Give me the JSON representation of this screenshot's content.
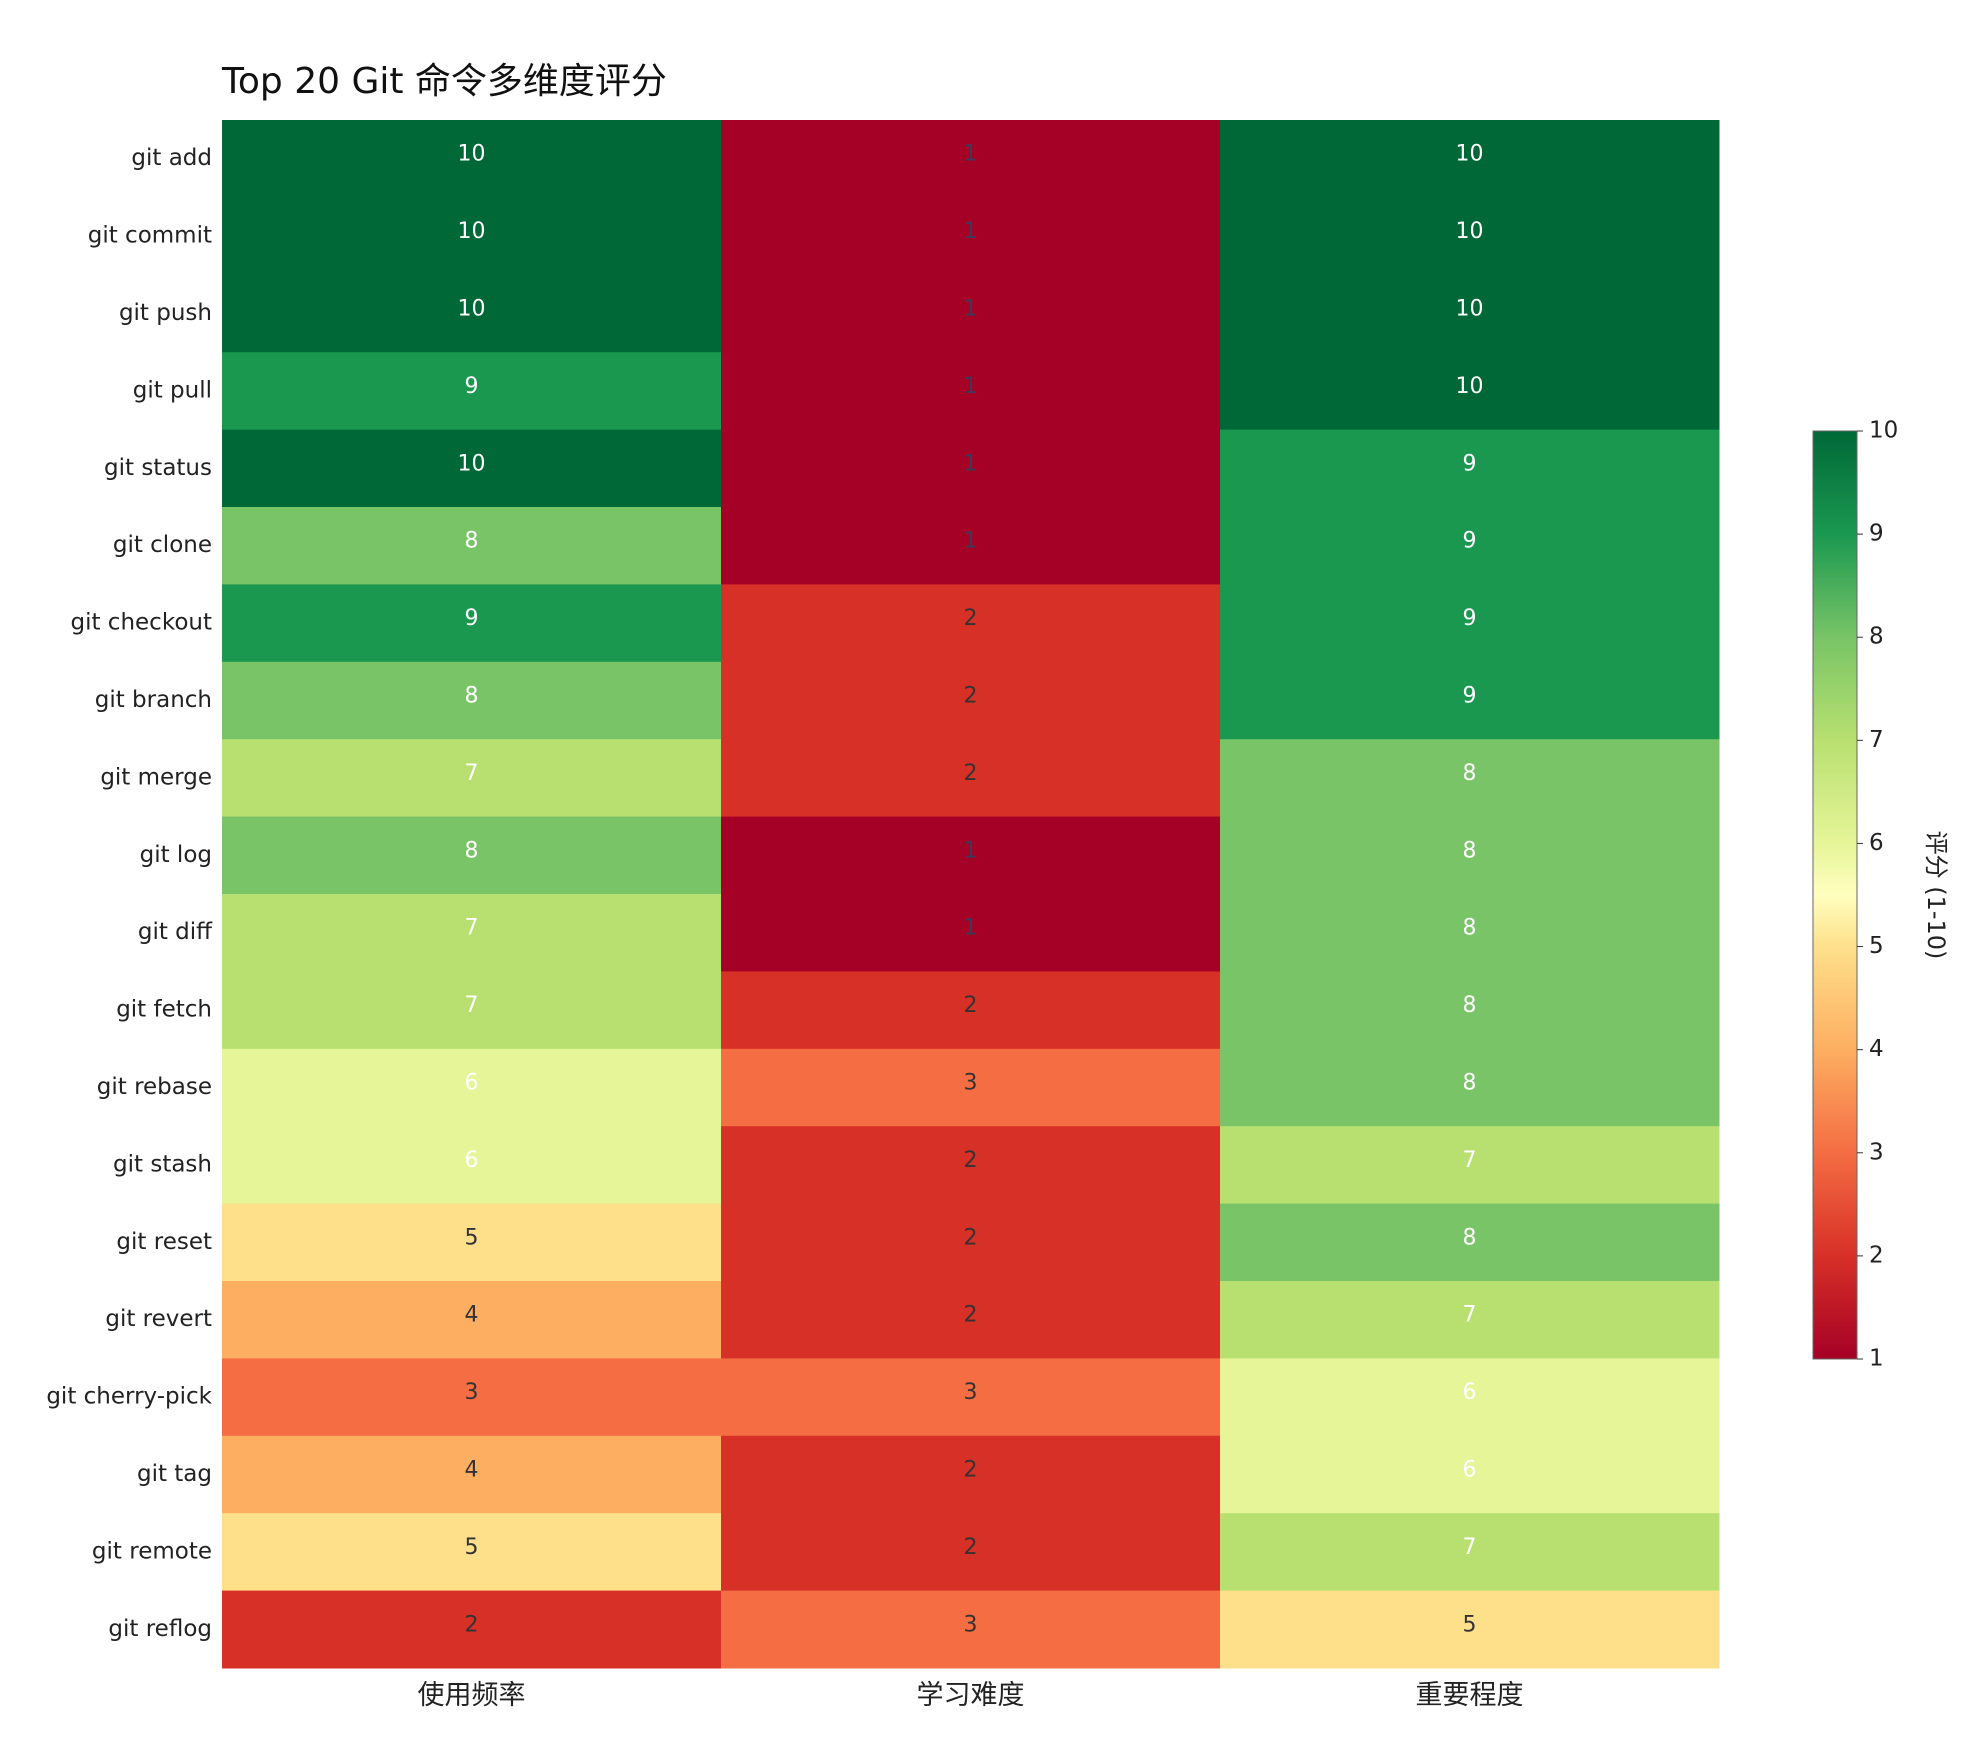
{
  "chart_data": {
    "type": "heatmap",
    "title": "Top 20 Git 命令多维度评分",
    "categories_x": [
      "使用频率",
      "学习难度",
      "重要程度"
    ],
    "categories_y": [
      "git add",
      "git commit",
      "git push",
      "git pull",
      "git status",
      "git clone",
      "git checkout",
      "git branch",
      "git merge",
      "git log",
      "git diff",
      "git fetch",
      "git rebase",
      "git stash",
      "git reset",
      "git revert",
      "git cherry-pick",
      "git tag",
      "git remote",
      "git reflog"
    ],
    "values": [
      [
        10,
        1,
        10
      ],
      [
        10,
        1,
        10
      ],
      [
        10,
        1,
        10
      ],
      [
        9,
        1,
        10
      ],
      [
        10,
        1,
        9
      ],
      [
        8,
        1,
        9
      ],
      [
        9,
        2,
        9
      ],
      [
        8,
        2,
        9
      ],
      [
        7,
        2,
        8
      ],
      [
        8,
        1,
        8
      ],
      [
        7,
        1,
        8
      ],
      [
        7,
        2,
        8
      ],
      [
        6,
        3,
        8
      ],
      [
        6,
        2,
        7
      ],
      [
        5,
        2,
        8
      ],
      [
        4,
        2,
        7
      ],
      [
        3,
        3,
        6
      ],
      [
        4,
        2,
        6
      ],
      [
        5,
        2,
        7
      ],
      [
        2,
        3,
        5
      ]
    ],
    "colorbar": {
      "label": "评分 (1-10)",
      "range": [
        1,
        10
      ],
      "ticks": [
        "1",
        "2",
        "3",
        "4",
        "5",
        "6",
        "7",
        "8",
        "9",
        "10"
      ]
    },
    "colors": {
      "1": "#a50026",
      "2": "#d73027",
      "3": "#f46d43",
      "4": "#fdae61",
      "5": "#fee08b",
      "6": "#e6f598",
      "7": "#b8e070",
      "8": "#78c466",
      "9": "#1a9850",
      "10": "#006837"
    }
  }
}
